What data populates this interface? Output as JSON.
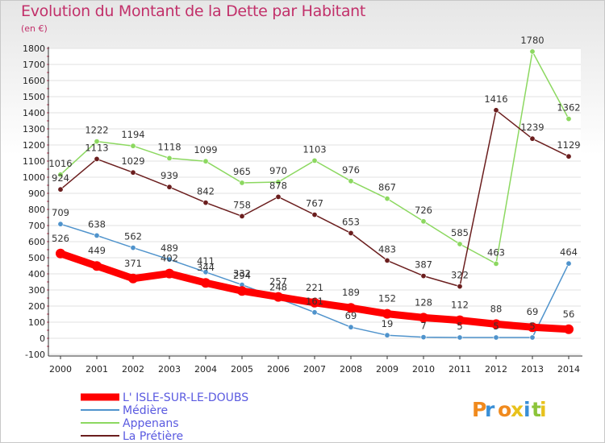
{
  "chart_data": {
    "type": "line",
    "title": "Evolution du Montant de la Dette par Habitant",
    "subtitle": "(en €)",
    "xlabel": "",
    "ylabel": "",
    "x": [
      "2000",
      "2001",
      "2002",
      "2003",
      "2004",
      "2005",
      "2006",
      "2007",
      "2008",
      "2009",
      "2010",
      "2011",
      "2012",
      "2013",
      "2014"
    ],
    "ylim": [
      -100,
      1800
    ],
    "yticks": [
      -100,
      0,
      100,
      200,
      300,
      400,
      500,
      600,
      700,
      800,
      900,
      1000,
      1100,
      1200,
      1300,
      1400,
      1500,
      1600,
      1700,
      1800
    ],
    "grid": true,
    "legend_position": "bottom-left",
    "series": [
      {
        "name": "L' ISLE-SUR-LE-DOUBS",
        "color": "#ff0000",
        "values": [
          526,
          449,
          371,
          402,
          344,
          294,
          257,
          221,
          189,
          152,
          128,
          112,
          88,
          69,
          56
        ]
      },
      {
        "name": "Médière",
        "color": "#4f93cc",
        "values": [
          709,
          638,
          562,
          489,
          411,
          332,
          248,
          161,
          69,
          19,
          7,
          5,
          5,
          5,
          464
        ]
      },
      {
        "name": "Appenans",
        "color": "#8cd860",
        "values": [
          1016,
          1222,
          1194,
          1118,
          1099,
          965,
          970,
          1103,
          976,
          867,
          726,
          585,
          463,
          1780,
          1362
        ]
      },
      {
        "name": "La Prétière",
        "color": "#6b1e1e",
        "values": [
          924,
          1113,
          1029,
          939,
          842,
          758,
          878,
          767,
          653,
          483,
          387,
          322,
          1416,
          1239,
          1129
        ]
      }
    ]
  },
  "logo": {
    "text": "Proxiti"
  }
}
